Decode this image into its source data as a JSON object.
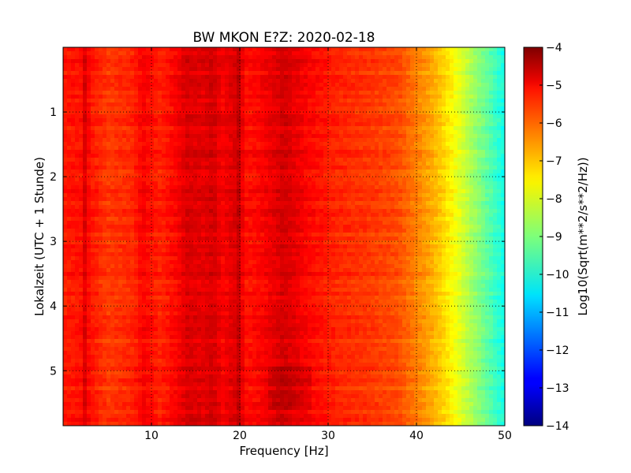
{
  "chart_data": {
    "type": "heatmap",
    "title": "BW MKON E?Z: 2020-02-18",
    "xlabel": "Frequency [Hz]",
    "ylabel": "Lokalzeit (UTC + 1 Stunde)",
    "xlim": [
      0,
      50
    ],
    "ylim": [
      0,
      5.85
    ],
    "y_inverted": true,
    "grid": true,
    "xticks": [
      10,
      20,
      30,
      40,
      50
    ],
    "xtick_labels": [
      "10",
      "20",
      "30",
      "40",
      "50"
    ],
    "yticks": [
      1,
      2,
      3,
      4,
      5
    ],
    "ytick_labels": [
      "1",
      "2",
      "3",
      "4",
      "5"
    ],
    "colormap": "jet",
    "colorbar": {
      "label": "Log10(Sqrt(m**2/s**2/Hz))",
      "range": [
        -14,
        -4
      ],
      "ticks": [
        -4,
        -5,
        -6,
        -7,
        -8,
        -9,
        -10,
        -11,
        -12,
        -13,
        -14
      ],
      "tick_labels": [
        "−4",
        "−5",
        "−6",
        "−7",
        "−8",
        "−9",
        "−10",
        "−11",
        "−12",
        "−13",
        "−14"
      ]
    },
    "frequency_profile": {
      "frequency_hz": [
        0,
        2,
        2.5,
        3,
        5,
        8,
        9,
        11,
        13,
        14,
        16,
        17,
        18,
        19.5,
        20,
        20.5,
        22,
        24,
        25,
        26,
        28,
        31,
        35,
        38,
        40,
        42,
        44,
        45,
        46,
        47,
        48,
        49,
        50
      ],
      "value": [
        -5.5,
        -5.4,
        -4.9,
        -5.4,
        -5.8,
        -5.6,
        -5.2,
        -5.6,
        -5.2,
        -4.9,
        -5.0,
        -4.8,
        -5.2,
        -4.9,
        -4.6,
        -5.4,
        -5.3,
        -5.0,
        -4.8,
        -5.0,
        -5.3,
        -5.6,
        -5.8,
        -6.0,
        -6.5,
        -7.0,
        -7.7,
        -8.1,
        -8.5,
        -8.9,
        -9.3,
        -9.7,
        -10.1
      ]
    }
  }
}
